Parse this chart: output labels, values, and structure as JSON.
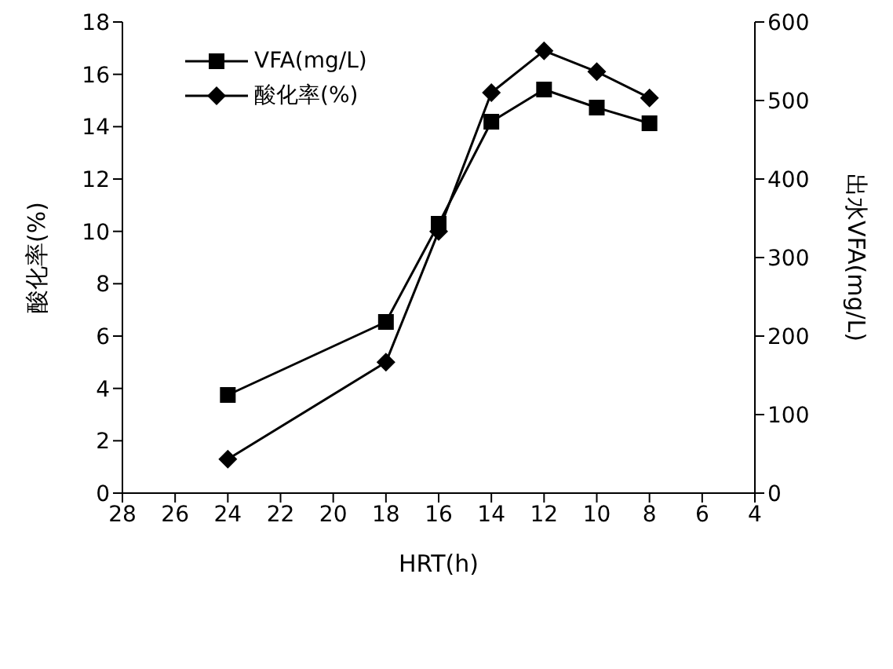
{
  "chart_data": {
    "type": "line",
    "xlabel": "HRT(h)",
    "ylabel": "酸化率(%)",
    "y2label": "出水VFA(mg/L)",
    "x": [
      24,
      18,
      16,
      14,
      12,
      10,
      8
    ],
    "xlim": [
      28,
      4
    ],
    "xticks": [
      28,
      26,
      24,
      22,
      20,
      18,
      16,
      14,
      12,
      10,
      8,
      6,
      4
    ],
    "ylim": [
      0,
      18
    ],
    "yticks": [
      0,
      2,
      4,
      6,
      8,
      10,
      12,
      14,
      16,
      18
    ],
    "y2lim": [
      0,
      600
    ],
    "y2ticks": [
      0,
      100,
      200,
      300,
      400,
      500,
      600
    ],
    "legend": "top left",
    "grid": false,
    "line_style": "solid",
    "series": [
      {
        "name": "VFA(mg/L)",
        "color": "#000000",
        "axis": "y2",
        "marker": "square",
        "values": [
          125,
          218,
          343,
          473,
          514,
          491,
          471
        ]
      },
      {
        "name": "酸化率(%)",
        "color": "#000000",
        "marker": "diamond",
        "values": [
          1.3,
          5.0,
          10.0,
          15.3,
          16.9,
          16.1,
          15.1
        ]
      }
    ]
  }
}
